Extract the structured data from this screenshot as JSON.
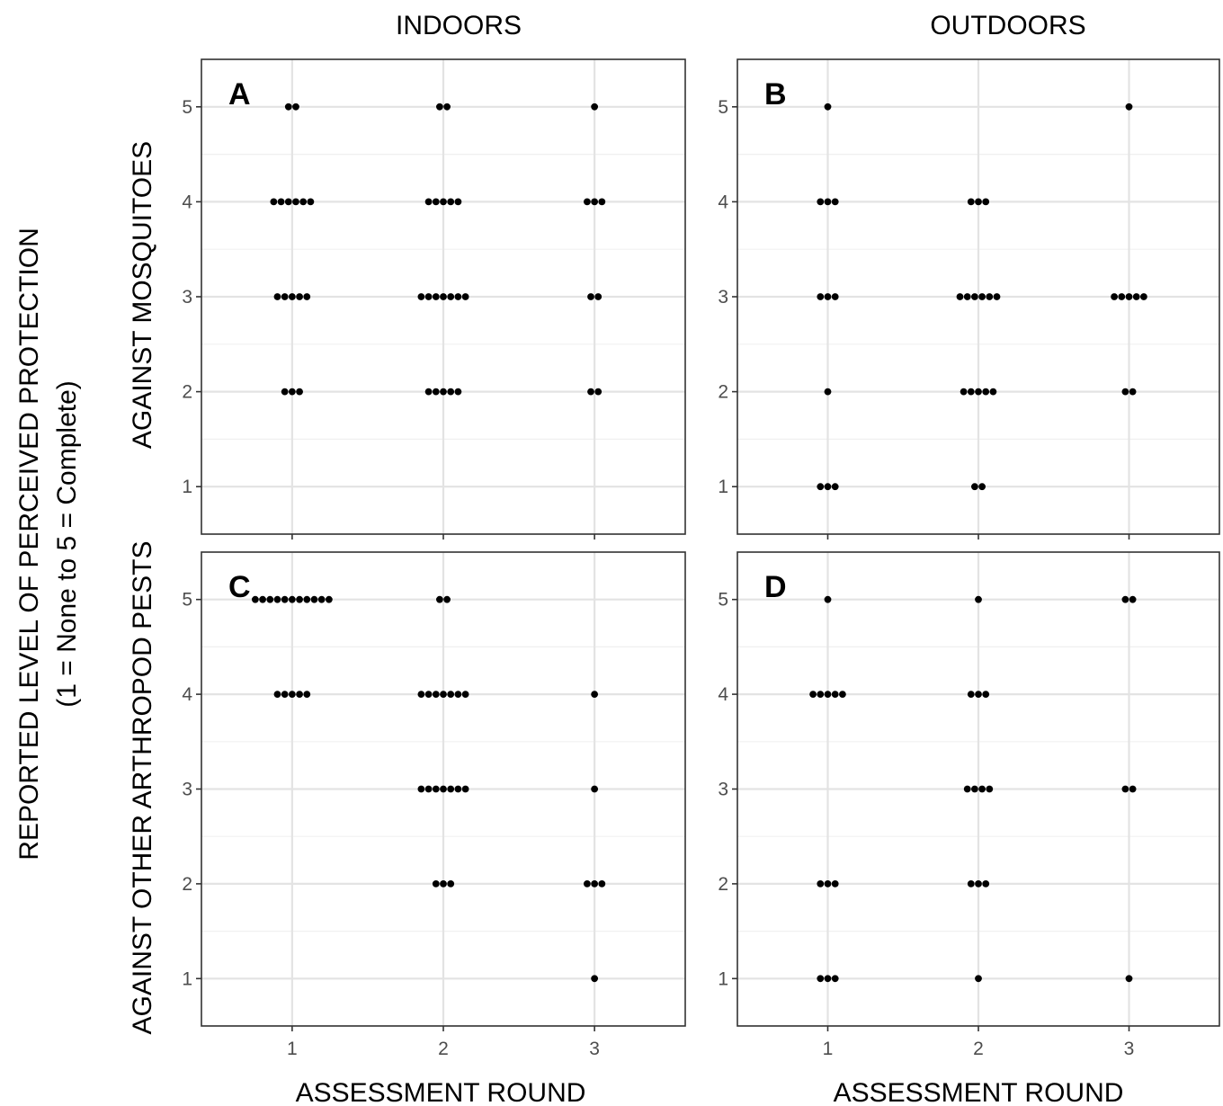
{
  "figure": {
    "column_titles": [
      "INDOORS",
      "OUTDOORS"
    ],
    "row_titles": [
      "AGAINST MOSQUITOES",
      "AGAINST OTHER ARTHROPOD PESTS"
    ],
    "y_label_line1": "REPORTED LEVEL OF PERCEIVED PROTECTION",
    "y_label_line2": "(1 = None to 5 = Complete)",
    "x_label": "ASSESSMENT ROUND"
  },
  "chart_data": [
    {
      "panel": "A",
      "type": "scatter",
      "column": "INDOORS",
      "row": "AGAINST MOSQUITOES",
      "x_ticks": [
        1,
        2,
        3
      ],
      "y_ticks": [
        1,
        2,
        3,
        4,
        5
      ],
      "xlim": [
        0.4,
        3.6
      ],
      "ylim": [
        0.5,
        5.5
      ],
      "counts": {
        "1": {
          "5": 2,
          "4": 6,
          "3": 5,
          "2": 3
        },
        "2": {
          "5": 2,
          "4": 5,
          "3": 7,
          "2": 5
        },
        "3": {
          "5": 1,
          "4": 3,
          "3": 2,
          "2": 2
        }
      }
    },
    {
      "panel": "B",
      "type": "scatter",
      "column": "OUTDOORS",
      "row": "AGAINST MOSQUITOES",
      "x_ticks": [
        1,
        2,
        3
      ],
      "y_ticks": [
        1,
        2,
        3,
        4,
        5
      ],
      "xlim": [
        0.4,
        3.6
      ],
      "ylim": [
        0.5,
        5.5
      ],
      "counts": {
        "1": {
          "5": 1,
          "4": 3,
          "3": 3,
          "2": 1,
          "1": 3
        },
        "2": {
          "4": 3,
          "3": 6,
          "2": 5,
          "1": 2
        },
        "3": {
          "5": 1,
          "3": 5,
          "2": 2
        }
      }
    },
    {
      "panel": "C",
      "type": "scatter",
      "column": "INDOORS",
      "row": "AGAINST OTHER ARTHROPOD PESTS",
      "x_ticks": [
        1,
        2,
        3
      ],
      "y_ticks": [
        1,
        2,
        3,
        4,
        5
      ],
      "xlim": [
        0.4,
        3.6
      ],
      "ylim": [
        0.5,
        5.5
      ],
      "counts": {
        "1": {
          "5": 11,
          "4": 5
        },
        "2": {
          "5": 2,
          "4": 7,
          "3": 7,
          "2": 3
        },
        "3": {
          "4": 1,
          "3": 1,
          "2": 3,
          "1": 1
        }
      }
    },
    {
      "panel": "D",
      "type": "scatter",
      "column": "OUTDOORS",
      "row": "AGAINST OTHER ARTHROPOD PESTS",
      "x_ticks": [
        1,
        2,
        3
      ],
      "y_ticks": [
        1,
        2,
        3,
        4,
        5
      ],
      "xlim": [
        0.4,
        3.6
      ],
      "ylim": [
        0.5,
        5.5
      ],
      "counts": {
        "1": {
          "5": 1,
          "4": 5,
          "2": 3,
          "1": 3
        },
        "2": {
          "5": 1,
          "4": 3,
          "3": 4,
          "2": 3,
          "1": 1
        },
        "3": {
          "5": 2,
          "3": 2,
          "1": 1
        }
      }
    }
  ]
}
